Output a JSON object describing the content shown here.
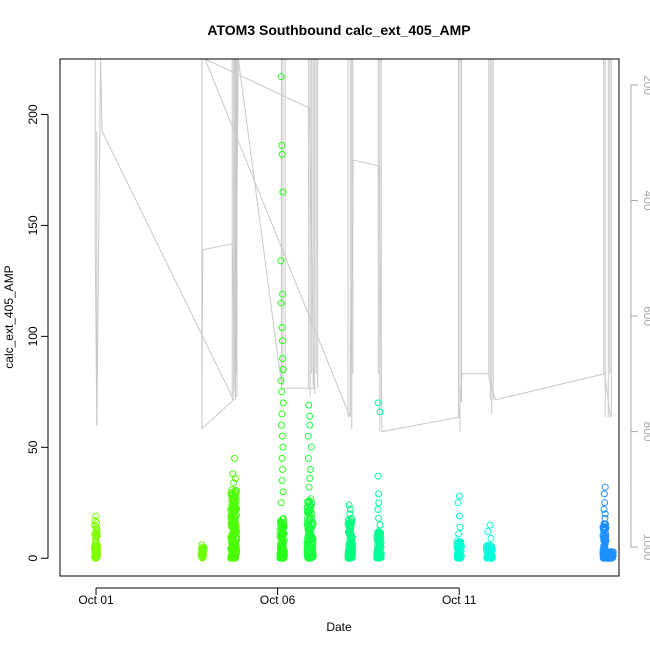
{
  "chart_data": {
    "type": "scatter",
    "title": "ATOM3 Southbound calc_ext_405_AMP",
    "xlabel": "Date",
    "ylabel": "calc_ext_405_AMP",
    "x_range": [
      "2023-09-30T00:12",
      "2023-10-15T09:36"
    ],
    "ylim": [
      -8,
      225
    ],
    "x_ticks": [
      {
        "label": "Oct 01",
        "value": "2023-10-01"
      },
      {
        "label": "Oct 06",
        "value": "2023-10-06"
      },
      {
        "label": "Oct 11",
        "value": "2023-10-11"
      }
    ],
    "y_ticks": [
      0,
      50,
      100,
      150,
      200
    ],
    "secondary_axis": {
      "position": "right",
      "reversed": true,
      "range": [
        155,
        1050
      ],
      "ticks": [
        200,
        400,
        600,
        800,
        1000
      ],
      "color": "#aaaaaa"
    },
    "grid": false,
    "legend": "none",
    "colors": {
      "depth_line": "#c8c8c8",
      "gradient_start": "#7fff00",
      "gradient_end": "#1e90ff"
    },
    "clusters": [
      {
        "t": "2023-10-01T00:00",
        "width_h": 2,
        "color": "#7fff00",
        "n": 70,
        "ymax_dense": 15,
        "outliers": [
          16,
          17,
          19
        ]
      },
      {
        "t": "2023-10-03T22:30",
        "width_h": 2,
        "color": "#6cff00",
        "n": 30,
        "ymax_dense": 5,
        "outliers": [
          6
        ]
      },
      {
        "t": "2023-10-04T19:00",
        "width_h": 4,
        "color": "#4cff00",
        "n": 150,
        "ymax_dense": 32,
        "outliers": [
          34,
          36,
          38,
          45
        ]
      },
      {
        "t": "2023-10-06T03:00",
        "width_h": 3,
        "color": "#29ff1a",
        "n": 110,
        "ymax_dense": 18,
        "outliers": [
          25,
          30,
          35,
          40,
          45,
          50,
          55,
          60,
          65,
          70,
          75,
          80,
          85,
          90,
          98,
          104,
          115,
          119,
          134,
          165,
          182,
          186,
          217
        ]
      },
      {
        "t": "2023-10-06T21:30",
        "width_h": 4,
        "color": "#1aff40",
        "n": 130,
        "ymax_dense": 28,
        "outliers": [
          32,
          36,
          40,
          45,
          50,
          55,
          60,
          64,
          69
        ]
      },
      {
        "t": "2023-10-08T00:00",
        "width_h": 3,
        "color": "#00ff80",
        "n": 100,
        "ymax_dense": 18,
        "outliers": [
          20,
          22,
          24
        ]
      },
      {
        "t": "2023-10-08T19:00",
        "width_h": 3,
        "color": "#00ff95",
        "n": 90,
        "ymax_dense": 12,
        "outliers": [
          15,
          18,
          22,
          25,
          29,
          37,
          66,
          70
        ]
      },
      {
        "t": "2023-10-11T00:00",
        "width_h": 3,
        "color": "#00ffd0",
        "n": 50,
        "ymax_dense": 8,
        "outliers": [
          11,
          14,
          19,
          25,
          28
        ]
      },
      {
        "t": "2023-10-11T20:00",
        "width_h": 4,
        "color": "#00ffdd",
        "n": 60,
        "ymax_dense": 6,
        "outliers": [
          9,
          12,
          15
        ]
      },
      {
        "t": "2023-10-15T00:00",
        "width_h": 2,
        "color": "#1e90ff",
        "n": 80,
        "ymax_dense": 16,
        "outliers": [
          18,
          20,
          22,
          25,
          29,
          32
        ]
      },
      {
        "t": "2023-10-15T03:30",
        "width_h": 5,
        "color": "#1e90ff",
        "n": 60,
        "ymax_dense": 3,
        "outliers": []
      }
    ],
    "depth_profile": [
      {
        "t": "2023-09-30T23:30",
        "depth": 490
      },
      {
        "t": "2023-10-01T00:30",
        "depth": 790
      },
      {
        "t": "2023-10-01T03:00",
        "depth": 155
      },
      {
        "t": "2023-10-01T04:00",
        "depth": 280
      },
      {
        "t": "2023-10-04T19:00",
        "depth": 745
      },
      {
        "t": "2023-10-03T22:00",
        "depth": 795
      },
      {
        "t": "2023-10-03T22:30",
        "depth": 485
      },
      {
        "t": "2023-10-04T18:00",
        "depth": 475
      },
      {
        "t": "2023-10-04T20:00",
        "depth": 730
      },
      {
        "t": "2023-10-04T22:00",
        "depth": 155
      },
      {
        "t": "2023-10-06T03:00",
        "depth": 725
      },
      {
        "t": "2023-10-07T00:00",
        "depth": 725
      },
      {
        "t": "2023-10-06T21:00",
        "depth": 240
      },
      {
        "t": "2023-10-04T00:00",
        "depth": 155
      },
      {
        "t": "2023-10-08T00:00",
        "depth": 775
      },
      {
        "t": "2023-10-08T02:00",
        "depth": 330
      },
      {
        "t": "2023-10-08T19:00",
        "depth": 340
      },
      {
        "t": "2023-10-08T21:00",
        "depth": 800
      },
      {
        "t": "2023-10-11T00:00",
        "depth": 775
      },
      {
        "t": "2023-10-11T02:00",
        "depth": 700
      },
      {
        "t": "2023-10-11T19:00",
        "depth": 700
      },
      {
        "t": "2023-10-12T00:00",
        "depth": 745
      },
      {
        "t": "2023-10-15T00:00",
        "depth": 700
      },
      {
        "t": "2023-10-15T04:00",
        "depth": 775
      }
    ],
    "depth_spikes": [
      {
        "t": "2023-09-30T23:30",
        "d1": 490,
        "d2": 155
      },
      {
        "t": "2023-10-01T00:30",
        "d1": 790,
        "d2": 280
      },
      {
        "t": "2023-10-03T22:00",
        "d1": 795,
        "d2": 155
      },
      {
        "t": "2023-10-04T18:00",
        "d1": 745,
        "d2": 155
      },
      {
        "t": "2023-10-04T19:00",
        "d1": 740,
        "d2": 155
      },
      {
        "t": "2023-10-04T19:40",
        "d1": 720,
        "d2": 155
      },
      {
        "t": "2023-10-04T20:10",
        "d1": 745,
        "d2": 155
      },
      {
        "t": "2023-10-04T20:40",
        "d1": 700,
        "d2": 155
      },
      {
        "t": "2023-10-04T21:10",
        "d1": 740,
        "d2": 155
      },
      {
        "t": "2023-10-06T02:30",
        "d1": 725,
        "d2": 155
      },
      {
        "t": "2023-10-06T03:30",
        "d1": 720,
        "d2": 155
      },
      {
        "t": "2023-10-06T05:00",
        "d1": 700,
        "d2": 155
      },
      {
        "t": "2023-10-06T20:30",
        "d1": 725,
        "d2": 155
      },
      {
        "t": "2023-10-06T21:30",
        "d1": 740,
        "d2": 155
      },
      {
        "t": "2023-10-06T22:30",
        "d1": 700,
        "d2": 155
      },
      {
        "t": "2023-10-06T23:30",
        "d1": 720,
        "d2": 155
      },
      {
        "t": "2023-10-07T00:30",
        "d1": 735,
        "d2": 155
      },
      {
        "t": "2023-10-07T01:30",
        "d1": 700,
        "d2": 155
      },
      {
        "t": "2023-10-07T02:30",
        "d1": 725,
        "d2": 155
      },
      {
        "t": "2023-10-07T22:30",
        "d1": 775,
        "d2": 155
      },
      {
        "t": "2023-10-08T00:00",
        "d1": 770,
        "d2": 155
      },
      {
        "t": "2023-10-08T01:00",
        "d1": 795,
        "d2": 155
      },
      {
        "t": "2023-10-08T01:40",
        "d1": 700,
        "d2": 155
      },
      {
        "t": "2023-10-08T18:30",
        "d1": 700,
        "d2": 155
      },
      {
        "t": "2023-10-08T19:30",
        "d1": 800,
        "d2": 155
      },
      {
        "t": "2023-10-08T20:30",
        "d1": 750,
        "d2": 155
      },
      {
        "t": "2023-10-10T23:30",
        "d1": 775,
        "d2": 155
      },
      {
        "t": "2023-10-11T00:30",
        "d1": 800,
        "d2": 155
      },
      {
        "t": "2023-10-11T01:30",
        "d1": 750,
        "d2": 155
      },
      {
        "t": "2023-10-11T19:30",
        "d1": 700,
        "d2": 155
      },
      {
        "t": "2023-10-11T20:30",
        "d1": 745,
        "d2": 155
      },
      {
        "t": "2023-10-11T21:30",
        "d1": 770,
        "d2": 155
      },
      {
        "t": "2023-10-11T22:30",
        "d1": 745,
        "d2": 155
      },
      {
        "t": "2023-10-14T23:30",
        "d1": 700,
        "d2": 155
      },
      {
        "t": "2023-10-15T00:30",
        "d1": 775,
        "d2": 155
      },
      {
        "t": "2023-10-15T02:30",
        "d1": 775,
        "d2": 155
      },
      {
        "t": "2023-10-15T03:30",
        "d1": 700,
        "d2": 155
      },
      {
        "t": "2023-10-15T04:30",
        "d1": 775,
        "d2": 155
      }
    ]
  }
}
